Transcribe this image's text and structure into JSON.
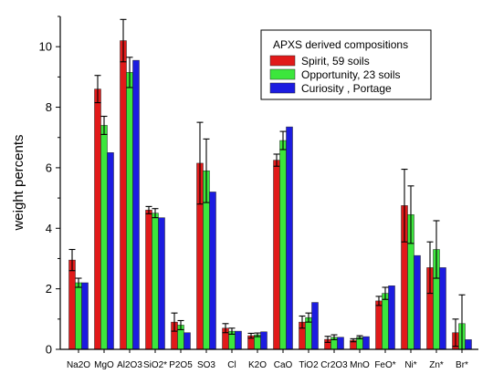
{
  "chart_data": {
    "type": "bar",
    "ylabel": "weight percents",
    "xlabel": "",
    "ylim": [
      0,
      11
    ],
    "yticks": [
      0,
      2,
      4,
      6,
      8,
      10
    ],
    "categories": [
      "Na2O",
      "MgO",
      "Al2O3",
      "SiO2*",
      "P2O5",
      "SO3",
      "Cl",
      "K2O",
      "CaO",
      "TiO2",
      "Cr2O3",
      "MnO",
      "FeO*",
      "Ni*",
      "Zn*",
      "Br*"
    ],
    "legend": {
      "title": "APXS derived compositions",
      "position": "top-right"
    },
    "series": [
      {
        "name": "Spirit, 59 soils",
        "color": "#e11a1a",
        "values": [
          2.95,
          8.6,
          10.2,
          4.6,
          0.9,
          6.15,
          0.7,
          0.45,
          6.25,
          0.9,
          0.33,
          0.3,
          1.6,
          4.75,
          2.7,
          0.55
        ],
        "errors": [
          0.35,
          0.45,
          0.7,
          0.12,
          0.3,
          1.35,
          0.15,
          0.08,
          0.2,
          0.2,
          0.1,
          0.05,
          0.15,
          1.2,
          0.85,
          0.45
        ]
      },
      {
        "name": "Opportunity, 23 soils",
        "color": "#3ce63c",
        "values": [
          2.2,
          7.4,
          9.15,
          4.5,
          0.8,
          5.9,
          0.6,
          0.48,
          6.9,
          1.05,
          0.4,
          0.4,
          1.85,
          4.45,
          3.3,
          0.85
        ],
        "errors": [
          0.15,
          0.3,
          0.5,
          0.15,
          0.15,
          1.05,
          0.1,
          0.06,
          0.3,
          0.15,
          0.08,
          0.05,
          0.2,
          0.95,
          0.95,
          0.95
        ]
      },
      {
        "name": "Curiosity , Portage",
        "color": "#1c1ce0",
        "values": [
          2.2,
          6.5,
          9.55,
          4.35,
          0.55,
          5.2,
          0.6,
          0.58,
          7.35,
          1.55,
          0.4,
          0.42,
          2.1,
          3.1,
          2.7,
          0.32
        ]
      }
    ]
  }
}
